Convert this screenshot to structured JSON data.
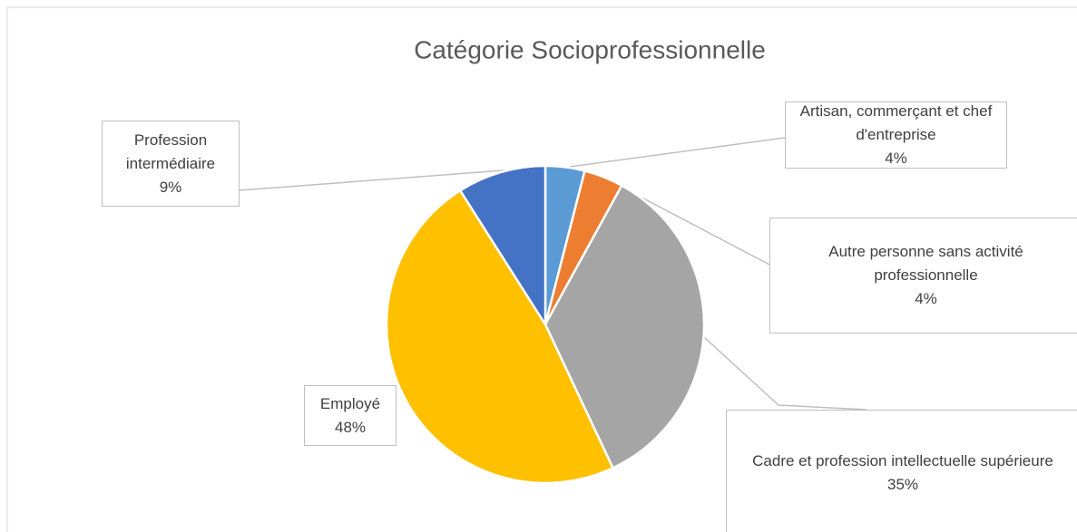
{
  "chart_data": {
    "type": "pie",
    "title": "Catégorie Socioprofessionnelle",
    "categories": [
      "Artisan, commerçant et chef d'entreprise",
      "Autre personne sans activité professionnelle",
      "Cadre et profession intellectuelle supérieure",
      "Employé",
      "Profession intermédiaire"
    ],
    "values": [
      4,
      4,
      35,
      48,
      9
    ],
    "value_labels": [
      "4%",
      "4%",
      "35%",
      "48%",
      "9%"
    ],
    "colors": [
      "#5b9bd5",
      "#ed7d31",
      "#a5a5a5",
      "#ffc000",
      "#4472c4"
    ]
  }
}
